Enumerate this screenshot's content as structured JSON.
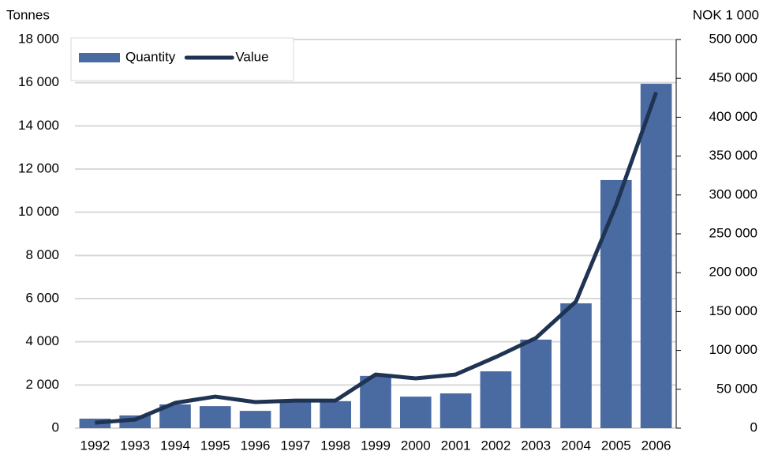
{
  "chart_data": {
    "type": "bar_line",
    "ylabel": "Tonnes",
    "y2label": "NOK 1 000",
    "categories": [
      "1992",
      "1993",
      "1994",
      "1995",
      "1996",
      "1997",
      "1998",
      "1999",
      "2000",
      "2001",
      "2002",
      "2003",
      "2004",
      "2005",
      "2006"
    ],
    "series": [
      {
        "name": "Quantity",
        "type": "bar",
        "color": "#4a6aa2",
        "values": [
          440,
          590,
          1100,
          1020,
          800,
          1250,
          1250,
          2420,
          1460,
          1610,
          2630,
          4100,
          5780,
          11490,
          15950
        ]
      },
      {
        "name": "Value",
        "type": "line",
        "axis": "y2",
        "color": "#1f3352",
        "values": [
          7000,
          11000,
          32500,
          40600,
          33500,
          35500,
          35500,
          69000,
          64000,
          69000,
          91500,
          116000,
          163000,
          287000,
          432000
        ]
      }
    ],
    "ylim": [
      0,
      18000
    ],
    "yticks": [
      0,
      {
        "value": 2000,
        "label": "2 000"
      },
      {
        "value": 4000,
        "label": "4 000"
      },
      {
        "value": 6000,
        "label": "6 000"
      },
      {
        "value": 8000,
        "label": "8 000"
      },
      {
        "value": 10000,
        "label": "10 000"
      },
      {
        "value": 12000,
        "label": "12 000"
      },
      {
        "value": 14000,
        "label": "14 000"
      },
      {
        "value": 16000,
        "label": "16 000"
      },
      {
        "value": 18000,
        "label": "18 000"
      }
    ],
    "y2lim": [
      0,
      500000
    ],
    "y2ticks": [
      0,
      {
        "value": 50000,
        "label": "50 000"
      },
      {
        "value": 100000,
        "label": "100 000"
      },
      {
        "value": 150000,
        "label": "150 000"
      },
      {
        "value": 200000,
        "label": "200 000"
      },
      {
        "value": 250000,
        "label": "250 000"
      },
      {
        "value": 300000,
        "label": "300 000"
      },
      {
        "value": 350000,
        "label": "350 000"
      },
      {
        "value": 400000,
        "label": "400 000"
      },
      {
        "value": 450000,
        "label": "450 000"
      },
      {
        "value": 500000,
        "label": "500 000"
      }
    ],
    "grid": true,
    "legend": "upper left"
  }
}
